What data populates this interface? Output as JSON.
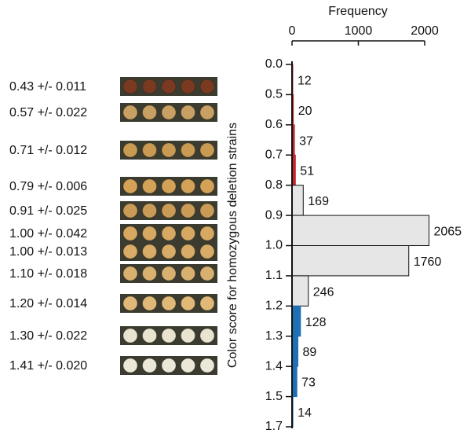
{
  "chart_data": {
    "type": "histogram",
    "x_label": "Frequency",
    "y_label": "Color score for homozygous deletion strains",
    "bin_edges": [
      "0.0",
      "0.5",
      "0.6",
      "0.7",
      "0.8",
      "0.9",
      "1.0",
      "1.1",
      "1.2",
      "1.3",
      "1.4",
      "1.5",
      "1.7"
    ],
    "values": [
      12,
      20,
      37,
      51,
      169,
      2065,
      1760,
      246,
      128,
      89,
      73,
      14
    ],
    "colors": [
      "#c0282d",
      "#c0282d",
      "#c0282d",
      "#c0282d",
      "#e6e6e6",
      "#e6e6e6",
      "#e6e6e6",
      "#e6e6e6",
      "#1f6fb5",
      "#1f6fb5",
      "#1f6fb5",
      "#1f6fb5"
    ],
    "xlim": [
      0,
      2000
    ],
    "xticks": [
      0,
      1000,
      2000
    ],
    "plates": [
      {
        "label": "0.43 +/- 0.011",
        "color": "#7a3a22"
      },
      {
        "label": "0.57 +/- 0.022",
        "color": "#c9a063"
      },
      {
        "label": "0.71 +/- 0.012",
        "color": "#c89a52"
      },
      {
        "label": "0.79 +/- 0.006",
        "color": "#d4a257"
      },
      {
        "label": "0.91 +/- 0.025",
        "color": "#c99b57"
      },
      {
        "label": "1.00 +/- 0.042",
        "color": "#d6a862"
      },
      {
        "label": "1.00 +/- 0.013",
        "color": "#d8ab66"
      },
      {
        "label": "1.10 +/- 0.018",
        "color": "#d8b070"
      },
      {
        "label": "1.20 +/- 0.014",
        "color": "#e0b878"
      },
      {
        "label": "1.30 +/- 0.022",
        "color": "#e8e4d0"
      },
      {
        "label": "1.41 +/- 0.020",
        "color": "#ece8d8"
      }
    ]
  }
}
